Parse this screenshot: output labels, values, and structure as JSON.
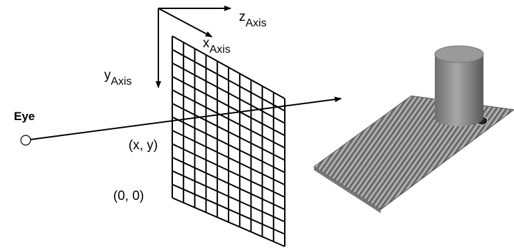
{
  "axes": {
    "z": {
      "name": "z",
      "sub": "Axis"
    },
    "x": {
      "name": "x",
      "sub": "Axis"
    },
    "y": {
      "name": "y",
      "sub": "Axis"
    }
  },
  "labels": {
    "eye": "Eye",
    "pixel": "(x, y)",
    "origin": "(0, 0)"
  }
}
